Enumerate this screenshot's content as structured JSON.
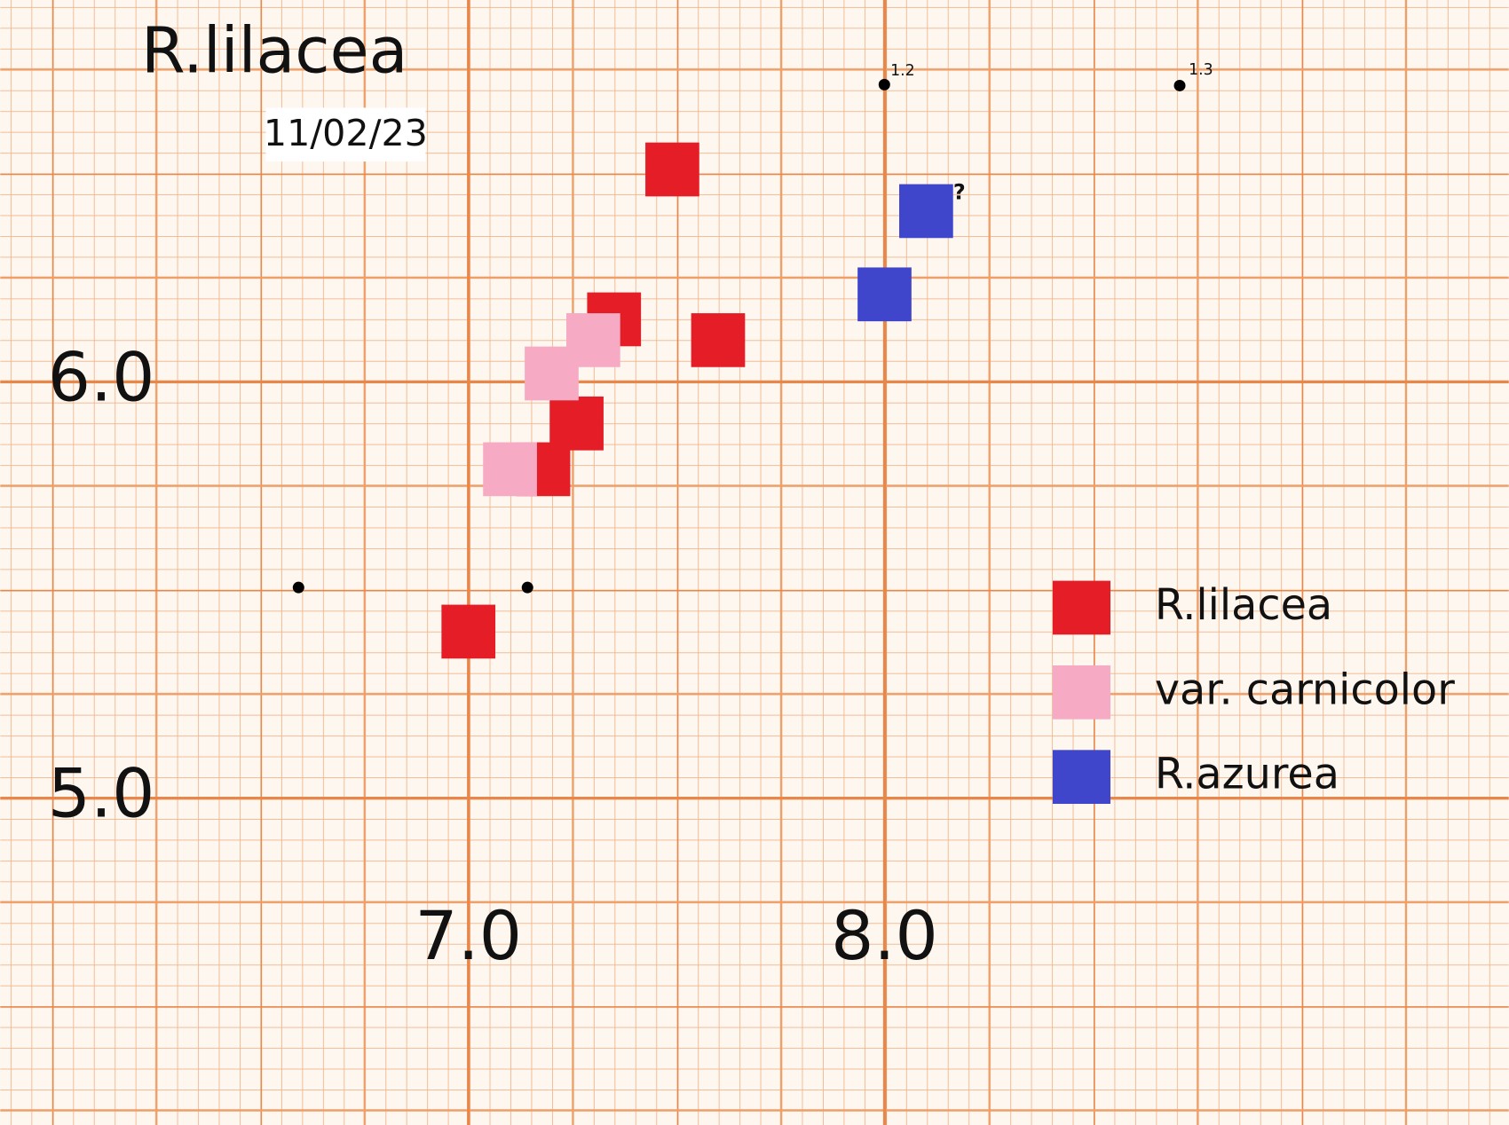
{
  "chart_data": {
    "type": "scatter",
    "title": "R.lilacea",
    "subtitle": "11/02/23",
    "xlim": [
      5.875,
      9.5
    ],
    "ylim": [
      4.215,
      6.917
    ],
    "xticks": [
      {
        "value": 7,
        "label": "7.0"
      },
      {
        "value": 8,
        "label": "8.0"
      }
    ],
    "yticks": [
      {
        "value": 5,
        "label": "5.0"
      },
      {
        "value": 6,
        "label": "6.0"
      }
    ],
    "grid": true,
    "legend": "right",
    "series": [
      {
        "name": "R.lilacea",
        "color": "#e41d27",
        "x": [
          7.49,
          7.35,
          7.6,
          7.26,
          7.18,
          7.0
        ],
        "values": [
          6.51,
          6.15,
          6.1,
          5.9,
          5.79,
          5.4
        ]
      },
      {
        "name": "var. carnicolor",
        "color": "#f6aac4",
        "x": [
          7.3,
          7.2,
          7.1
        ],
        "values": [
          6.1,
          6.02,
          5.79
        ]
      },
      {
        "name": "R.azurea",
        "color": "#4046cc",
        "x": [
          8.1,
          8.0
        ],
        "values": [
          6.41,
          6.21
        ]
      }
    ],
    "annotations": [
      "1.2",
      "1.3",
      "?"
    ]
  }
}
